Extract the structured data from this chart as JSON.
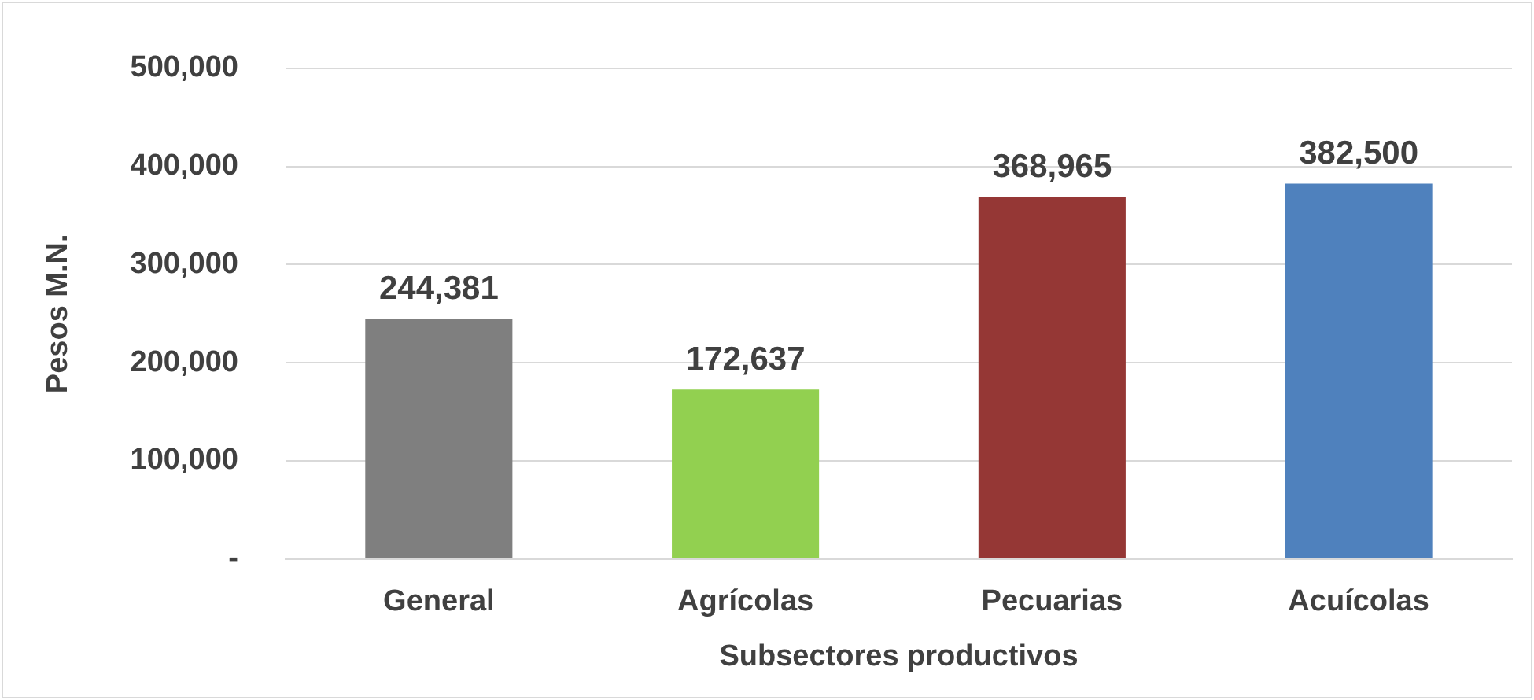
{
  "chart_data": {
    "type": "bar",
    "xlabel": "Subsectores productivos",
    "ylabel": "Pesos M.N.",
    "categories": [
      "General",
      "Agrícolas",
      "Pecuarias",
      "Acuícolas"
    ],
    "values": [
      244381,
      172637,
      368965,
      382500
    ],
    "colors": [
      "#7f7f7f",
      "#92d050",
      "#953735",
      "#4f81bd"
    ],
    "value_labels": [
      "244,381",
      "172,637",
      "368,965",
      "382,500"
    ],
    "ylim": [
      0,
      500000
    ],
    "yticks": [
      {
        "value": 0,
        "label": "-"
      },
      {
        "value": 100000,
        "label": "100,000"
      },
      {
        "value": 200000,
        "label": "200,000"
      },
      {
        "value": 300000,
        "label": "300,000"
      },
      {
        "value": 400000,
        "label": "400,000"
      },
      {
        "value": 500000,
        "label": "500,000"
      }
    ],
    "grid": "y",
    "legend": false
  }
}
